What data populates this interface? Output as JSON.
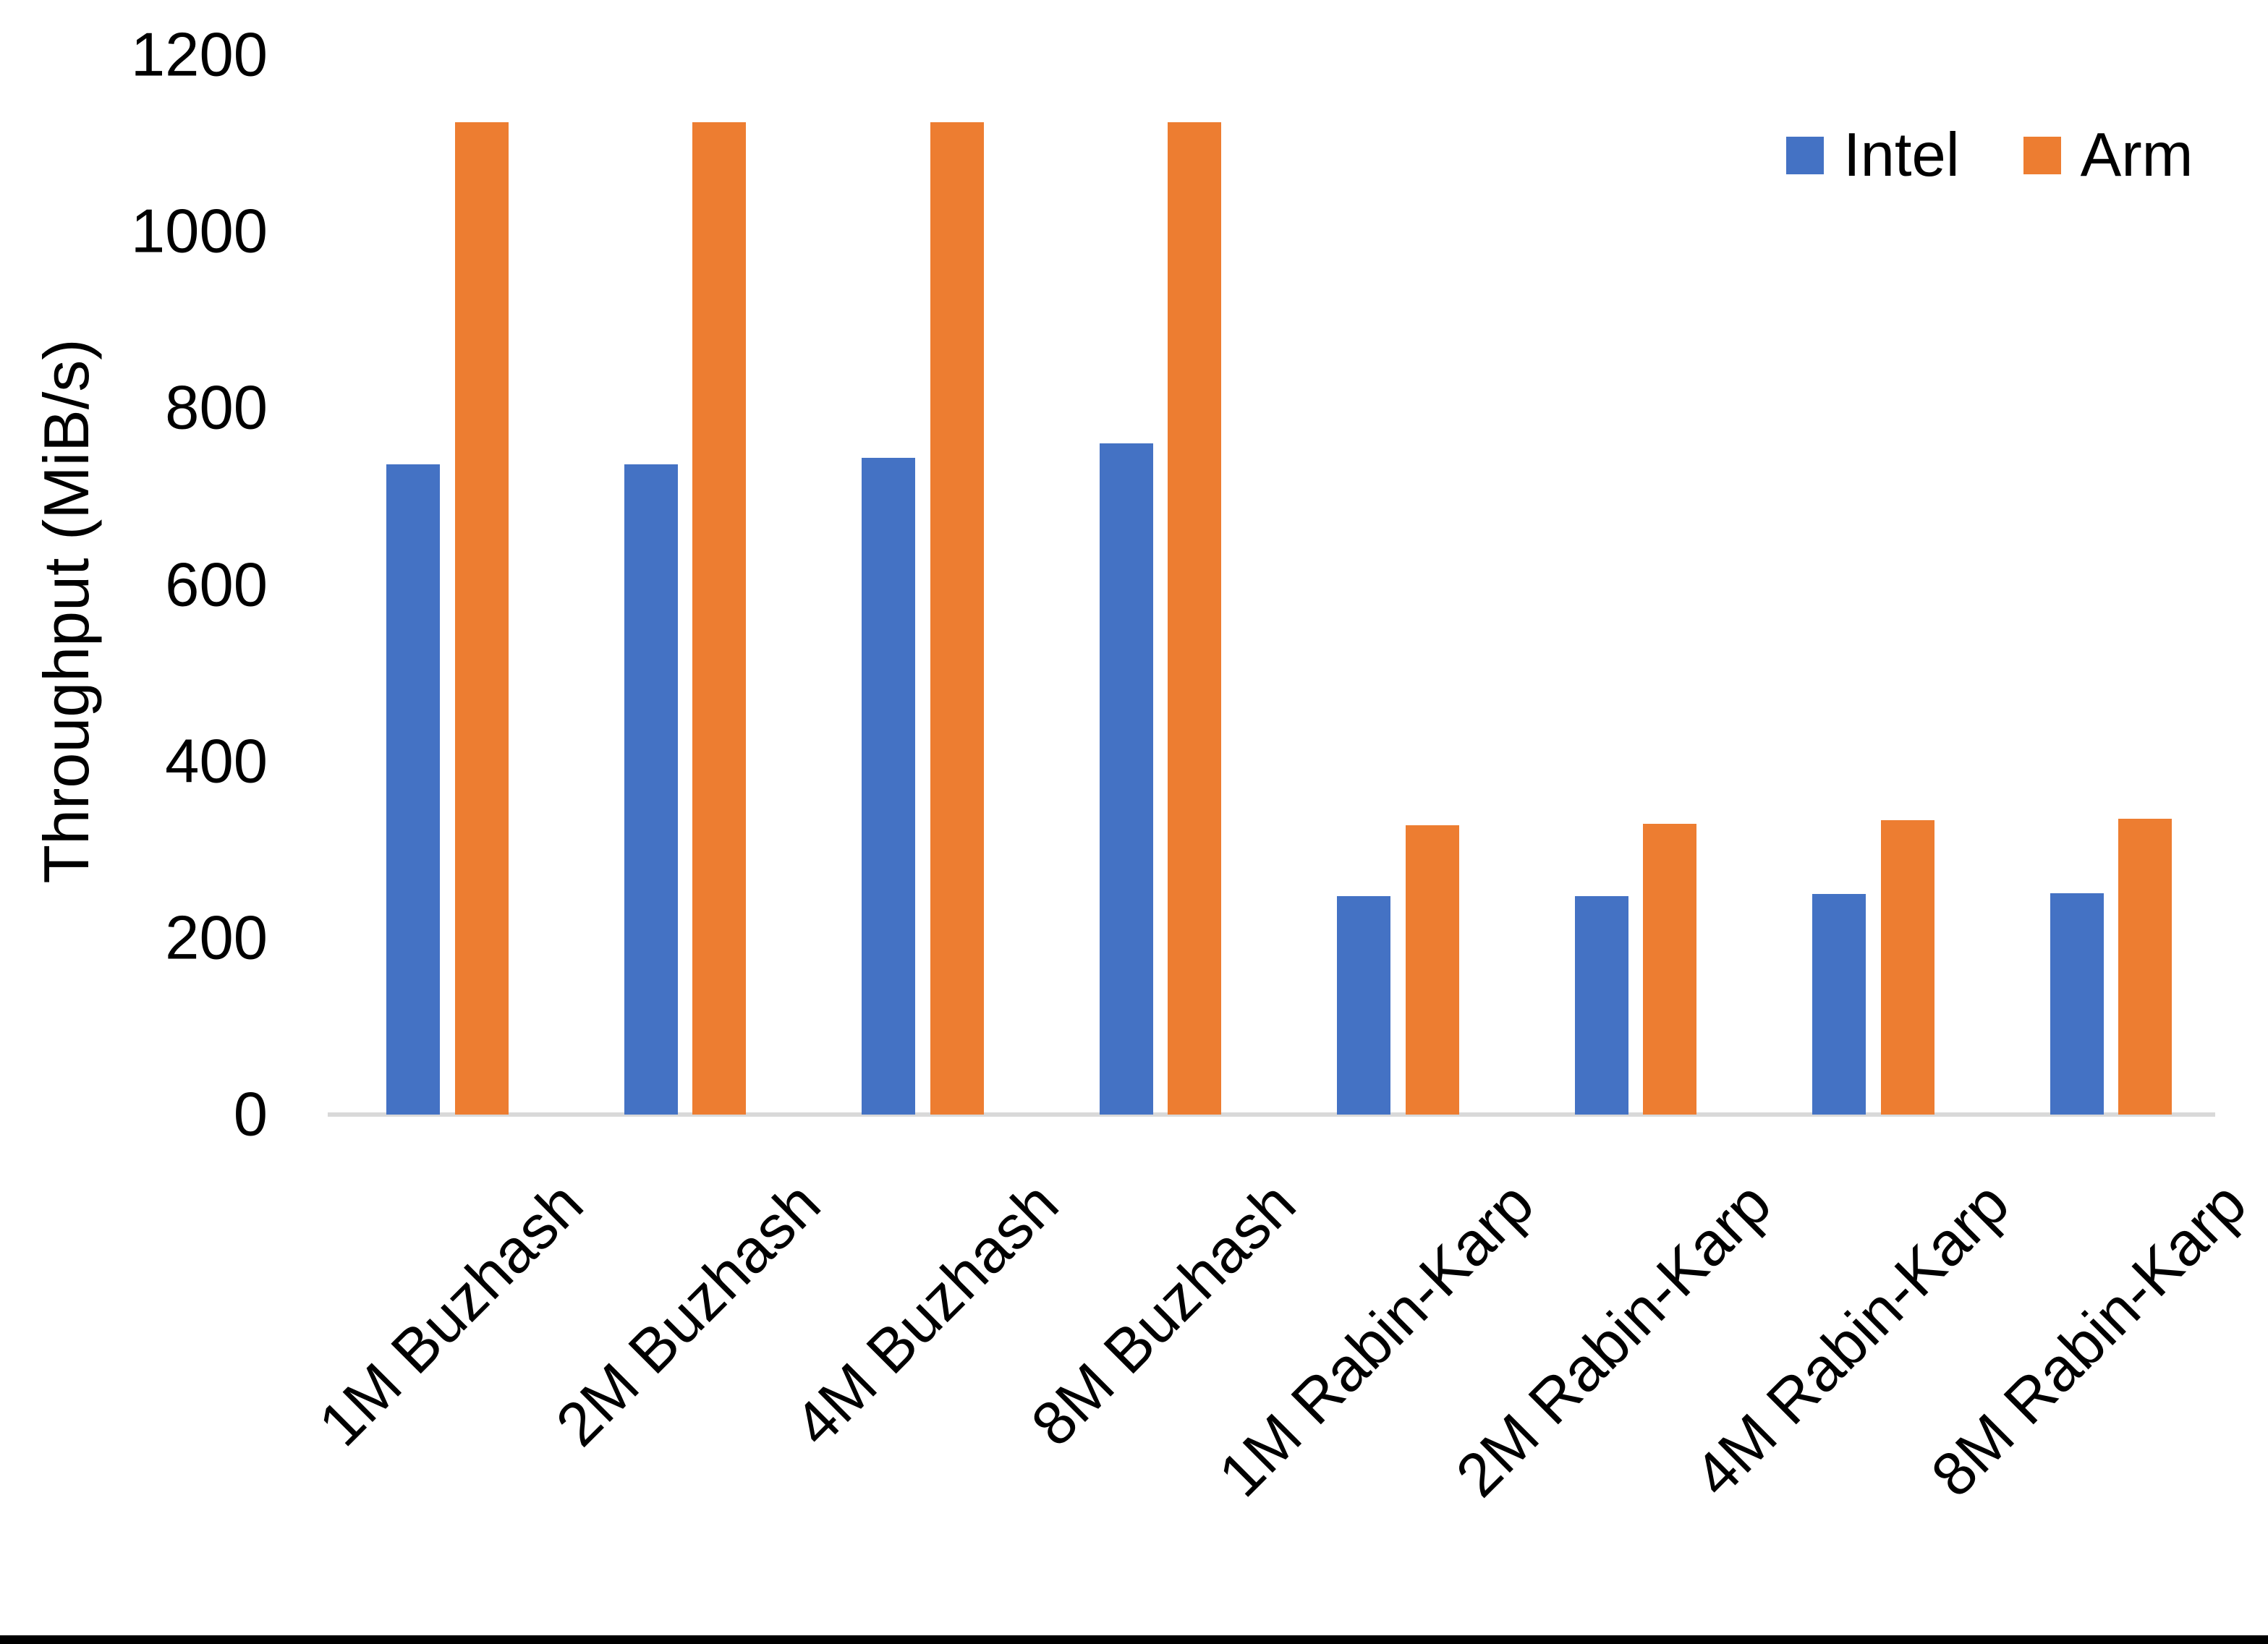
{
  "chart_data": {
    "type": "bar",
    "title": "",
    "ylabel": "Throughput (MiB/s)",
    "xlabel": "",
    "ylim": [
      0,
      1200
    ],
    "yticks": [
      0,
      200,
      400,
      600,
      800,
      1000,
      1200
    ],
    "grid": false,
    "legend_position": "top-right",
    "categories": [
      "1M Buzhash",
      "2M Buzhash",
      "4M Buzhash",
      "8M Buzhash",
      "1M Rabin-Karp",
      "2M Rabin-Karp",
      "4M Rabin-Karp",
      "8M Rabin-Karp"
    ],
    "series": [
      {
        "name": "Intel",
        "color": "#4472C4",
        "values": [
          736,
          736,
          744,
          760,
          247,
          247,
          250,
          251
        ]
      },
      {
        "name": "Arm",
        "color": "#ED7D31",
        "values": [
          1124,
          1124,
          1124,
          1124,
          328,
          329,
          333,
          335
        ]
      }
    ],
    "axis_line_color": "#d9d9d9",
    "text_color": "#000000"
  }
}
